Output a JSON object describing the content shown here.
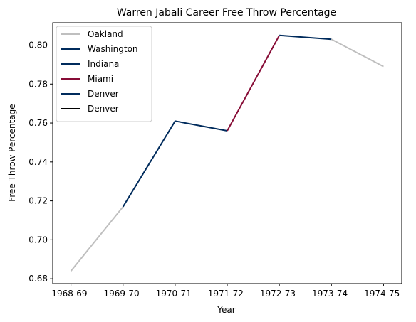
{
  "chart_data": {
    "type": "line",
    "title": "Warren Jabali Career Free Throw Percentage",
    "xlabel": "Year",
    "ylabel": "Free Throw Percentage",
    "categories": [
      "1968-69-",
      "1969-70-",
      "1970-71-",
      "1971-72-",
      "1972-73-",
      "1973-74-",
      "1974-75-"
    ],
    "yticks": [
      "0.68",
      "0.70",
      "0.72",
      "0.74",
      "0.76",
      "0.78",
      "0.80"
    ],
    "ylim": [
      0.6775,
      0.8115
    ],
    "grid": false,
    "legend_position": "top-left",
    "series": [
      {
        "name": "Oakland",
        "color": "#bfbfbf",
        "x": [
          "1968-69-",
          "1969-70-"
        ],
        "values": [
          0.684,
          0.717
        ]
      },
      {
        "name": "Washington",
        "color": "#002b5c",
        "x": [
          "1969-70-",
          "1970-71-"
        ],
        "values": [
          0.717,
          0.761
        ]
      },
      {
        "name": "Indiana",
        "color": "#002b5c",
        "x": [
          "1970-71-",
          "1971-72-"
        ],
        "values": [
          0.761,
          0.756
        ]
      },
      {
        "name": "Miami",
        "color": "#870c36",
        "x": [
          "1971-72-",
          "1972-73-"
        ],
        "values": [
          0.756,
          0.805
        ]
      },
      {
        "name": "Denver",
        "color": "#002b5c",
        "x": [
          "1972-73-",
          "1973-74-"
        ],
        "values": [
          0.805,
          0.803
        ]
      },
      {
        "name": "Denver-",
        "color": "#000000",
        "x": [
          "1973-74-"
        ],
        "values": [
          0.803
        ]
      },
      {
        "name": "",
        "color": "#bfbfbf",
        "x": [
          "1973-74-",
          "1974-75-"
        ],
        "values": [
          0.803,
          0.789
        ]
      }
    ]
  }
}
